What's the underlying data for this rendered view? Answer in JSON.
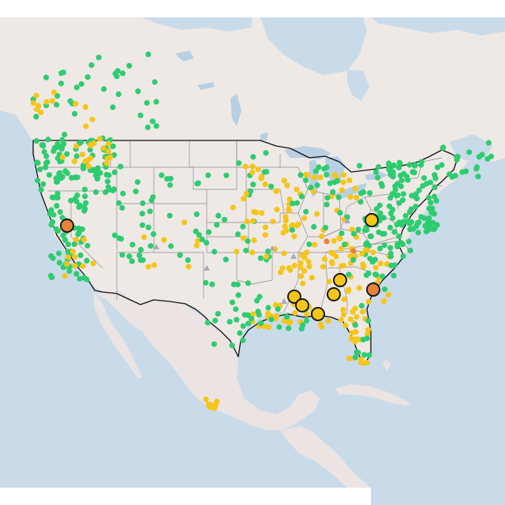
{
  "map": {
    "colors": {
      "water": "#c9dbe9",
      "land": "#efe9e6",
      "land_alt": "#ebe4e2",
      "lake": "#b8d0e4",
      "border": "#111111",
      "state_line": "#8a8a8a"
    },
    "legend_colors": {
      "green": "#2ecc71",
      "yellow": "#f5c518",
      "orange": "#e8823a",
      "gray": "#a6acb3"
    },
    "marker_types": [
      "green-dot",
      "yellow-dot",
      "orange-dot",
      "gray-triangle",
      "yellow-circle-outlined",
      "orange-circle-outlined"
    ]
  }
}
